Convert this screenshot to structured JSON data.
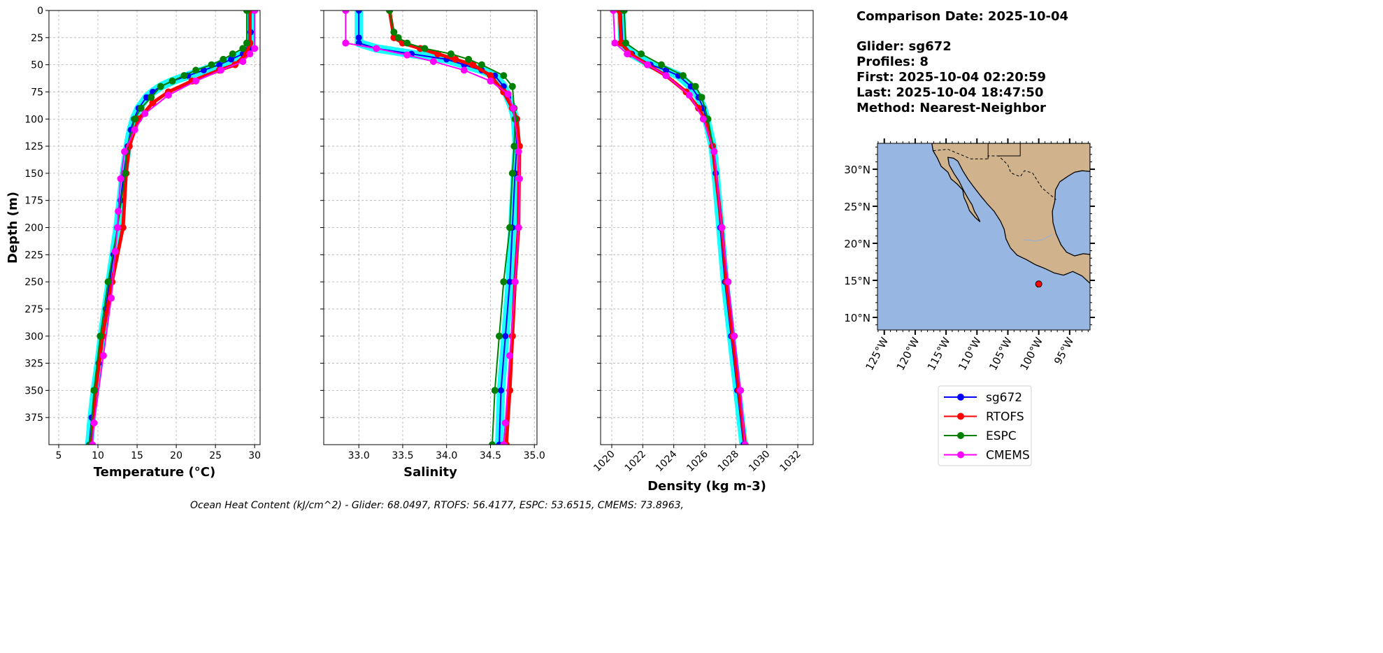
{
  "info": {
    "comparison_date": "Comparison Date: 2025-10-04",
    "glider": "Glider: sg672",
    "profiles": "Profiles: 8",
    "first": "First: 2025-10-04 02:20:59",
    "last": "Last: 2025-10-04 18:47:50",
    "method": "Method: Nearest-Neighbor"
  },
  "caption": "Ocean Heat Content (kJ/cm^2) - Glider: 68.0497,  RTOFS: 56.4177,  ESPC: 53.6515,  CMEMS: 73.8963,",
  "colors": {
    "sg672": "#0000ff",
    "sg672_raw": "#00ffff",
    "RTOFS": "#ff0000",
    "ESPC": "#008000",
    "CMEMS": "#ff00ff",
    "ocean": "#97b6e1",
    "land": "#d0b38c"
  },
  "legend": [
    "sg672",
    "RTOFS",
    "ESPC",
    "CMEMS"
  ],
  "chart_data": [
    {
      "type": "line",
      "id": "temperature",
      "xlabel": "Temperature (°C)",
      "ylabel": "Depth (m)",
      "xlim": [
        3.75,
        30.7
      ],
      "ylim": [
        400,
        0
      ],
      "grid": true,
      "xticks": [
        "5",
        "10",
        "15",
        "20",
        "25",
        "30"
      ],
      "xtick_values": [
        5,
        10,
        15,
        20,
        25,
        30
      ],
      "yticks": [
        "0",
        "25",
        "50",
        "75",
        "100",
        "125",
        "150",
        "175",
        "200",
        "225",
        "250",
        "275",
        "300",
        "325",
        "350",
        "375"
      ],
      "series": [
        {
          "name": "sg672",
          "depth": [
            0,
            20,
            35,
            40,
            45,
            50,
            55,
            60,
            65,
            70,
            75,
            80,
            90,
            100,
            110,
            125,
            150,
            175,
            200,
            225,
            250,
            275,
            300,
            325,
            350,
            375,
            400
          ],
          "values": [
            29.5,
            29.5,
            29.3,
            28.5,
            27,
            25.5,
            23.5,
            21.5,
            19.5,
            18,
            17,
            16.2,
            15.2,
            14.6,
            14.2,
            13.8,
            13.3,
            12.9,
            12.5,
            12.0,
            11.5,
            11.0,
            10.5,
            10.1,
            9.6,
            9.2,
            8.9
          ]
        },
        {
          "name": "RTOFS",
          "depth": [
            0,
            30,
            40,
            50,
            55,
            65,
            75,
            85,
            100,
            125,
            150,
            200,
            250,
            300,
            350,
            400
          ],
          "values": [
            29.4,
            29.4,
            29,
            27.5,
            25.5,
            22,
            19,
            17,
            15.2,
            14,
            13.6,
            13.2,
            11.8,
            10.6,
            9.7,
            9.1
          ]
        },
        {
          "name": "ESPC",
          "depth": [
            0,
            30,
            35,
            40,
            45,
            50,
            55,
            60,
            65,
            70,
            80,
            90,
            100,
            130,
            150,
            200,
            250,
            300,
            350,
            400
          ],
          "values": [
            29,
            29,
            28.5,
            27.2,
            26,
            24.5,
            22.5,
            21,
            19.5,
            18,
            16.8,
            15.5,
            14.7,
            13.6,
            13.5,
            12.5,
            11.3,
            10.3,
            9.5,
            9
          ]
        },
        {
          "name": "CMEMS",
          "depth": [
            0,
            35,
            40,
            47,
            55,
            65,
            78,
            95,
            110,
            130,
            155,
            185,
            200,
            222,
            265,
            318,
            380,
            400
          ],
          "values": [
            30,
            30,
            29.4,
            28.5,
            25.7,
            22.5,
            19,
            16,
            14.7,
            13.4,
            12.9,
            12.6,
            12.5,
            12.2,
            11.7,
            10.7,
            9.5,
            9.3
          ]
        }
      ]
    },
    {
      "type": "line",
      "id": "salinity",
      "xlabel": "Salinity",
      "ylabel": "",
      "xlim": [
        32.6,
        35.03
      ],
      "ylim": [
        400,
        0
      ],
      "grid": true,
      "xticks": [
        "33.0",
        "33.5",
        "34.0",
        "34.5",
        "35.0"
      ],
      "xtick_values": [
        33.0,
        33.5,
        34.0,
        34.5,
        35.0
      ],
      "series": [
        {
          "name": "sg672",
          "depth": [
            0,
            25,
            30,
            35,
            40,
            45,
            50,
            55,
            60,
            70,
            80,
            90,
            100,
            125,
            150,
            200,
            250,
            300,
            350,
            400
          ],
          "values": [
            33.0,
            33.0,
            33.0,
            33.2,
            33.6,
            34.0,
            34.2,
            34.4,
            34.55,
            34.65,
            34.7,
            34.75,
            34.78,
            34.8,
            34.78,
            34.75,
            34.72,
            34.67,
            34.62,
            34.6
          ]
        },
        {
          "name": "RTOFS",
          "depth": [
            0,
            25,
            30,
            35,
            40,
            45,
            50,
            60,
            75,
            90,
            100,
            125,
            200,
            250,
            300,
            350,
            400
          ],
          "values": [
            33.35,
            33.4,
            33.5,
            33.7,
            33.9,
            34.1,
            34.3,
            34.5,
            34.65,
            34.75,
            34.8,
            34.83,
            34.82,
            34.78,
            34.75,
            34.72,
            34.68
          ]
        },
        {
          "name": "ESPC",
          "depth": [
            0,
            20,
            25,
            30,
            35,
            40,
            45,
            50,
            60,
            70,
            90,
            100,
            125,
            150,
            200,
            250,
            300,
            350,
            400
          ],
          "values": [
            33.35,
            33.4,
            33.45,
            33.55,
            33.75,
            34.05,
            34.25,
            34.4,
            34.65,
            34.75,
            34.77,
            34.78,
            34.77,
            34.75,
            34.72,
            34.65,
            34.6,
            34.55,
            34.52
          ]
        },
        {
          "name": "CMEMS",
          "depth": [
            0,
            30,
            35,
            41,
            47,
            55,
            65,
            77,
            90,
            130,
            155,
            200,
            250,
            318,
            380,
            400
          ],
          "values": [
            32.85,
            32.85,
            33.2,
            33.55,
            33.85,
            34.2,
            34.5,
            34.7,
            34.76,
            34.82,
            34.83,
            34.82,
            34.78,
            34.72,
            34.67,
            34.65
          ]
        }
      ]
    },
    {
      "type": "line",
      "id": "density",
      "xlabel": "Density (kg m-3)",
      "ylabel": "",
      "xlim": [
        1019.28,
        1032.99
      ],
      "ylim": [
        400,
        0
      ],
      "grid": true,
      "xticks": [
        "1020",
        "1022",
        "1024",
        "1026",
        "1028",
        "1030",
        "1032"
      ],
      "xtick_values": [
        1020,
        1022,
        1024,
        1026,
        1028,
        1030,
        1032
      ],
      "series": [
        {
          "name": "sg672",
          "depth": [
            0,
            30,
            40,
            50,
            55,
            60,
            70,
            80,
            90,
            100,
            125,
            150,
            200,
            250,
            300,
            350,
            400
          ],
          "values": [
            1020.6,
            1020.7,
            1021.3,
            1022.5,
            1023.5,
            1024.3,
            1025.1,
            1025.6,
            1025.9,
            1026.1,
            1026.5,
            1026.7,
            1027.0,
            1027.3,
            1027.7,
            1028.1,
            1028.5
          ]
        },
        {
          "name": "RTOFS",
          "depth": [
            0,
            30,
            40,
            50,
            60,
            75,
            90,
            100,
            125,
            200,
            250,
            300,
            350,
            400
          ],
          "values": [
            1020.5,
            1020.6,
            1021.2,
            1022.3,
            1023.5,
            1024.8,
            1025.6,
            1026.0,
            1026.5,
            1027.1,
            1027.4,
            1027.8,
            1028.2,
            1028.6
          ]
        },
        {
          "name": "ESPC",
          "depth": [
            0,
            30,
            40,
            50,
            60,
            70,
            80,
            100,
            130,
            200,
            250,
            300,
            350,
            400
          ],
          "values": [
            1020.8,
            1020.9,
            1021.9,
            1023.2,
            1024.6,
            1025.4,
            1025.8,
            1026.2,
            1026.6,
            1027.1,
            1027.5,
            1027.9,
            1028.3,
            1028.6
          ]
        },
        {
          "name": "CMEMS",
          "depth": [
            0,
            30,
            40,
            50,
            60,
            78,
            100,
            130,
            200,
            250,
            300,
            350,
            400
          ],
          "values": [
            1020.1,
            1020.2,
            1021.0,
            1022.3,
            1023.5,
            1025,
            1025.9,
            1026.6,
            1027.1,
            1027.5,
            1027.9,
            1028.3,
            1028.6
          ]
        }
      ]
    },
    {
      "type": "map",
      "id": "location-map",
      "lon_range": [
        -126.1,
        -91.7
      ],
      "lat_range": [
        8.3,
        33.5
      ],
      "lat_ticks": [
        "10°N",
        "15°N",
        "20°N",
        "25°N",
        "30°N"
      ],
      "lat_tick_values": [
        10,
        15,
        20,
        25,
        30
      ],
      "lon_ticks": [
        "125°W",
        "120°W",
        "115°W",
        "110°W",
        "105°W",
        "100°W",
        "95°W"
      ],
      "lon_tick_values": [
        -125,
        -120,
        -115,
        -110,
        -105,
        -100,
        -95
      ],
      "glider_location": {
        "lon": -100,
        "lat": 14.5
      }
    }
  ]
}
